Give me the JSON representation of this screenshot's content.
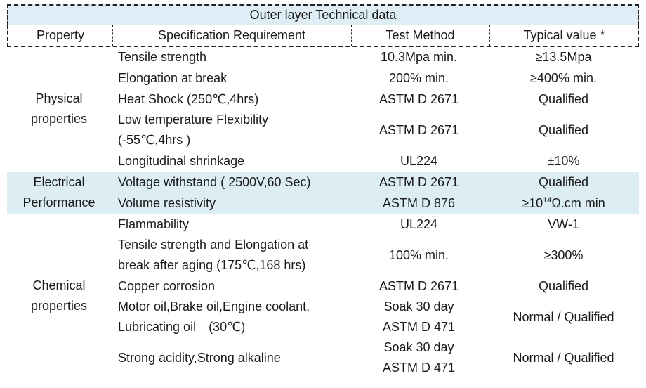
{
  "header": {
    "title": "Outer layer Technical data",
    "columns": [
      "Property",
      "Specification Requirement",
      "Test Method",
      "Typical value *"
    ]
  },
  "groups": [
    {
      "property": [
        "Physical",
        "properties"
      ],
      "rows": [
        {
          "spec": [
            "Tensile strength"
          ],
          "method": [
            "10.3Mpa min."
          ],
          "typical": [
            "≥13.5Mpa"
          ]
        },
        {
          "spec": [
            "Elongation at break"
          ],
          "method": [
            "200% min."
          ],
          "typical": [
            "≥400% min."
          ]
        },
        {
          "spec": [
            "Heat Shock (250℃,4hrs)"
          ],
          "method": [
            "ASTM D 2671"
          ],
          "typical": [
            "Qualified"
          ]
        },
        {
          "spec": [
            "Low temperature Flexibility",
            "(-55℃,4hrs )"
          ],
          "method": [
            "ASTM D 2671"
          ],
          "typical": [
            "Qualified"
          ]
        },
        {
          "spec": [
            "Longitudinal shrinkage"
          ],
          "method": [
            "UL224"
          ],
          "typical": [
            "±10%"
          ]
        }
      ]
    },
    {
      "property": [
        "Electrical",
        "Performance"
      ],
      "rows": [
        {
          "spec": [
            "Voltage withstand ( 2500V,60 Sec)"
          ],
          "method": [
            "ASTM D 2671"
          ],
          "typical": [
            "Qualified"
          ]
        },
        {
          "spec": [
            "Volume resistivity"
          ],
          "method": [
            "ASTM D 876"
          ],
          "typical": [
            {
              "base": "≥10",
              "sup": "14",
              "rest": "Ω.cm min"
            }
          ]
        }
      ]
    },
    {
      "property": [
        "Chemical",
        "properties"
      ],
      "rows": [
        {
          "spec": [
            "Flammability"
          ],
          "method": [
            "UL224"
          ],
          "typical": [
            "VW-1"
          ]
        },
        {
          "spec": [
            "Tensile strength and Elongation at",
            "break after aging (175℃,168 hrs)"
          ],
          "method": [
            "100% min."
          ],
          "typical": [
            "≥300%"
          ]
        },
        {
          "spec": [
            "Copper corrosion"
          ],
          "method": [
            "ASTM D 2671"
          ],
          "typical": [
            "Qualified"
          ]
        },
        {
          "spec": [
            "Motor oil,Brake oil,Engine coolant,",
            "Lubricating oil　(30℃)"
          ],
          "method": [
            "Soak 30 day",
            "ASTM D 471"
          ],
          "typical": [
            "Normal / Qualified"
          ]
        },
        {
          "spec": [
            "Strong acidity,Strong alkaline"
          ],
          "method": [
            "Soak 30 day",
            "ASTM D 471"
          ],
          "typical": [
            "Normal / Qualified"
          ]
        }
      ]
    }
  ]
}
